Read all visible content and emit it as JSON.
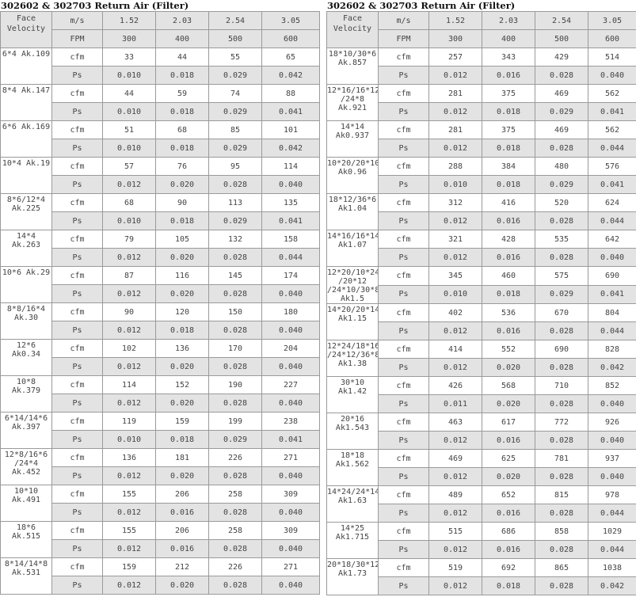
{
  "left": {
    "title": "302602 & 302703 Return Air (Filter)",
    "header": {
      "face_velocity_label": "Face Velocity",
      "ms_label": "m/s",
      "ms_values": [
        "1.52",
        "2.03",
        "2.54",
        "3.05"
      ],
      "fpm_label": "FPM",
      "fpm_values": [
        "300",
        "400",
        "500",
        "600"
      ]
    },
    "rows": [
      {
        "model": "6*4 Ak.109",
        "cfm": [
          "33",
          "44",
          "55",
          "65"
        ],
        "ps": [
          "0.010",
          "0.018",
          "0.029",
          "0.042"
        ]
      },
      {
        "model": "8*4 Ak.147",
        "cfm": [
          "44",
          "59",
          "74",
          "88"
        ],
        "ps": [
          "0.010",
          "0.018",
          "0.029",
          "0.041"
        ]
      },
      {
        "model": "6*6 Ak.169",
        "cfm": [
          "51",
          "68",
          "85",
          "101"
        ],
        "ps": [
          "0.010",
          "0.018",
          "0.029",
          "0.042"
        ]
      },
      {
        "model": "10*4 Ak.19",
        "cfm": [
          "57",
          "76",
          "95",
          "114"
        ],
        "ps": [
          "0.012",
          "0.020",
          "0.028",
          "0.040"
        ]
      },
      {
        "model": "8*6/12*4 Ak.225",
        "cfm": [
          "68",
          "90",
          "113",
          "135"
        ],
        "ps": [
          "0.010",
          "0.018",
          "0.029",
          "0.041"
        ]
      },
      {
        "model": "14*4 Ak.263",
        "cfm": [
          "79",
          "105",
          "132",
          "158"
        ],
        "ps": [
          "0.012",
          "0.020",
          "0.028",
          "0.044"
        ]
      },
      {
        "model": "10*6 Ak.29",
        "cfm": [
          "87",
          "116",
          "145",
          "174"
        ],
        "ps": [
          "0.012",
          "0.020",
          "0.028",
          "0.040"
        ]
      },
      {
        "model": "8*8/16*4 Ak.30",
        "cfm": [
          "90",
          "120",
          "150",
          "180"
        ],
        "ps": [
          "0.012",
          "0.018",
          "0.028",
          "0.040"
        ]
      },
      {
        "model": "12*6 Ak0.34",
        "cfm": [
          "102",
          "136",
          "170",
          "204"
        ],
        "ps": [
          "0.012",
          "0.020",
          "0.028",
          "0.040"
        ]
      },
      {
        "model": "10*8 Ak.379",
        "cfm": [
          "114",
          "152",
          "190",
          "227"
        ],
        "ps": [
          "0.012",
          "0.020",
          "0.028",
          "0.040"
        ]
      },
      {
        "model": "6*14/14*6 Ak.397",
        "cfm": [
          "119",
          "159",
          "199",
          "238"
        ],
        "ps": [
          "0.010",
          "0.018",
          "0.029",
          "0.041"
        ]
      },
      {
        "model": "12*8/16*6 /24*4 Ak.452",
        "cfm": [
          "136",
          "181",
          "226",
          "271"
        ],
        "ps": [
          "0.012",
          "0.020",
          "0.028",
          "0.040"
        ]
      },
      {
        "model": "10*10 Ak.491",
        "cfm": [
          "155",
          "206",
          "258",
          "309"
        ],
        "ps": [
          "0.012",
          "0.016",
          "0.028",
          "0.040"
        ]
      },
      {
        "model": "18*6 Ak.515",
        "cfm": [
          "155",
          "206",
          "258",
          "309"
        ],
        "ps": [
          "0.012",
          "0.016",
          "0.028",
          "0.040"
        ]
      },
      {
        "model": "8*14/14*8 Ak.531",
        "cfm": [
          "159",
          "212",
          "226",
          "271"
        ],
        "ps": [
          "0.012",
          "0.020",
          "0.028",
          "0.040"
        ]
      }
    ]
  },
  "right": {
    "title": "302602 & 302703 Return Air (Filter)",
    "header": {
      "face_velocity_label": "Face Velocity",
      "ms_label": "m/s",
      "ms_values": [
        "1.52",
        "2.03",
        "2.54",
        "3.05"
      ],
      "fpm_label": "FPM",
      "fpm_values": [
        "300",
        "400",
        "500",
        "600"
      ]
    },
    "rows": [
      {
        "model": "18*10/30*6 Ak.857",
        "cfm": [
          "257",
          "343",
          "429",
          "514"
        ],
        "ps": [
          "0.012",
          "0.016",
          "0.028",
          "0.040"
        ]
      },
      {
        "model": "12*16/16*12 /24*8 Ak.921",
        "cfm": [
          "281",
          "375",
          "469",
          "562"
        ],
        "ps": [
          "0.012",
          "0.018",
          "0.029",
          "0.041"
        ]
      },
      {
        "model": "14*14 Ak0.937",
        "cfm": [
          "281",
          "375",
          "469",
          "562"
        ],
        "ps": [
          "0.012",
          "0.018",
          "0.028",
          "0.044"
        ]
      },
      {
        "model": "10*20/20*10 Ak0.96",
        "cfm": [
          "288",
          "384",
          "480",
          "576"
        ],
        "ps": [
          "0.010",
          "0.018",
          "0.029",
          "0.041"
        ]
      },
      {
        "model": "18*12/36*6 Ak1.04",
        "cfm": [
          "312",
          "416",
          "520",
          "624"
        ],
        "ps": [
          "0.012",
          "0.016",
          "0.028",
          "0.044"
        ]
      },
      {
        "model": "14*16/16*14 Ak1.07",
        "cfm": [
          "321",
          "428",
          "535",
          "642"
        ],
        "ps": [
          "0.012",
          "0.016",
          "0.028",
          "0.040"
        ]
      },
      {
        "model": "12*20/10*24 /20*12 /24*10/30*8 Ak1.5",
        "cfm": [
          "345",
          "460",
          "575",
          "690"
        ],
        "ps": [
          "0.010",
          "0.018",
          "0.029",
          "0.041"
        ]
      },
      {
        "model": "14*20/20*14 Ak1.15",
        "cfm": [
          "402",
          "536",
          "670",
          "804"
        ],
        "ps": [
          "0.012",
          "0.016",
          "0.028",
          "0.044"
        ]
      },
      {
        "model": "12*24/18*16 /24*12/36*8 Ak1.38",
        "cfm": [
          "414",
          "552",
          "690",
          "828"
        ],
        "ps": [
          "0.012",
          "0.020",
          "0.028",
          "0.042"
        ]
      },
      {
        "model": "30*10 Ak1.42",
        "cfm": [
          "426",
          "568",
          "710",
          "852"
        ],
        "ps": [
          "0.011",
          "0.020",
          "0.028",
          "0.040"
        ]
      },
      {
        "model": "20*16 Ak1.543",
        "cfm": [
          "463",
          "617",
          "772",
          "926"
        ],
        "ps": [
          "0.012",
          "0.016",
          "0.028",
          "0.040"
        ]
      },
      {
        "model": "18*18 Ak1.562",
        "cfm": [
          "469",
          "625",
          "781",
          "937"
        ],
        "ps": [
          "0.012",
          "0.020",
          "0.028",
          "0.040"
        ]
      },
      {
        "model": "14*24/24*14 Ak1.63",
        "cfm": [
          "489",
          "652",
          "815",
          "978"
        ],
        "ps": [
          "0.012",
          "0.016",
          "0.028",
          "0.044"
        ]
      },
      {
        "model": "14*25 Ak1.715",
        "cfm": [
          "515",
          "686",
          "858",
          "1029"
        ],
        "ps": [
          "0.012",
          "0.016",
          "0.028",
          "0.044"
        ]
      },
      {
        "model": "20*18/30*12 Ak1.73",
        "cfm": [
          "519",
          "692",
          "865",
          "1038"
        ],
        "ps": [
          "0.012",
          "0.018",
          "0.028",
          "0.042"
        ]
      }
    ]
  },
  "labels": {
    "cfm": "cfm",
    "ps": "Ps"
  }
}
